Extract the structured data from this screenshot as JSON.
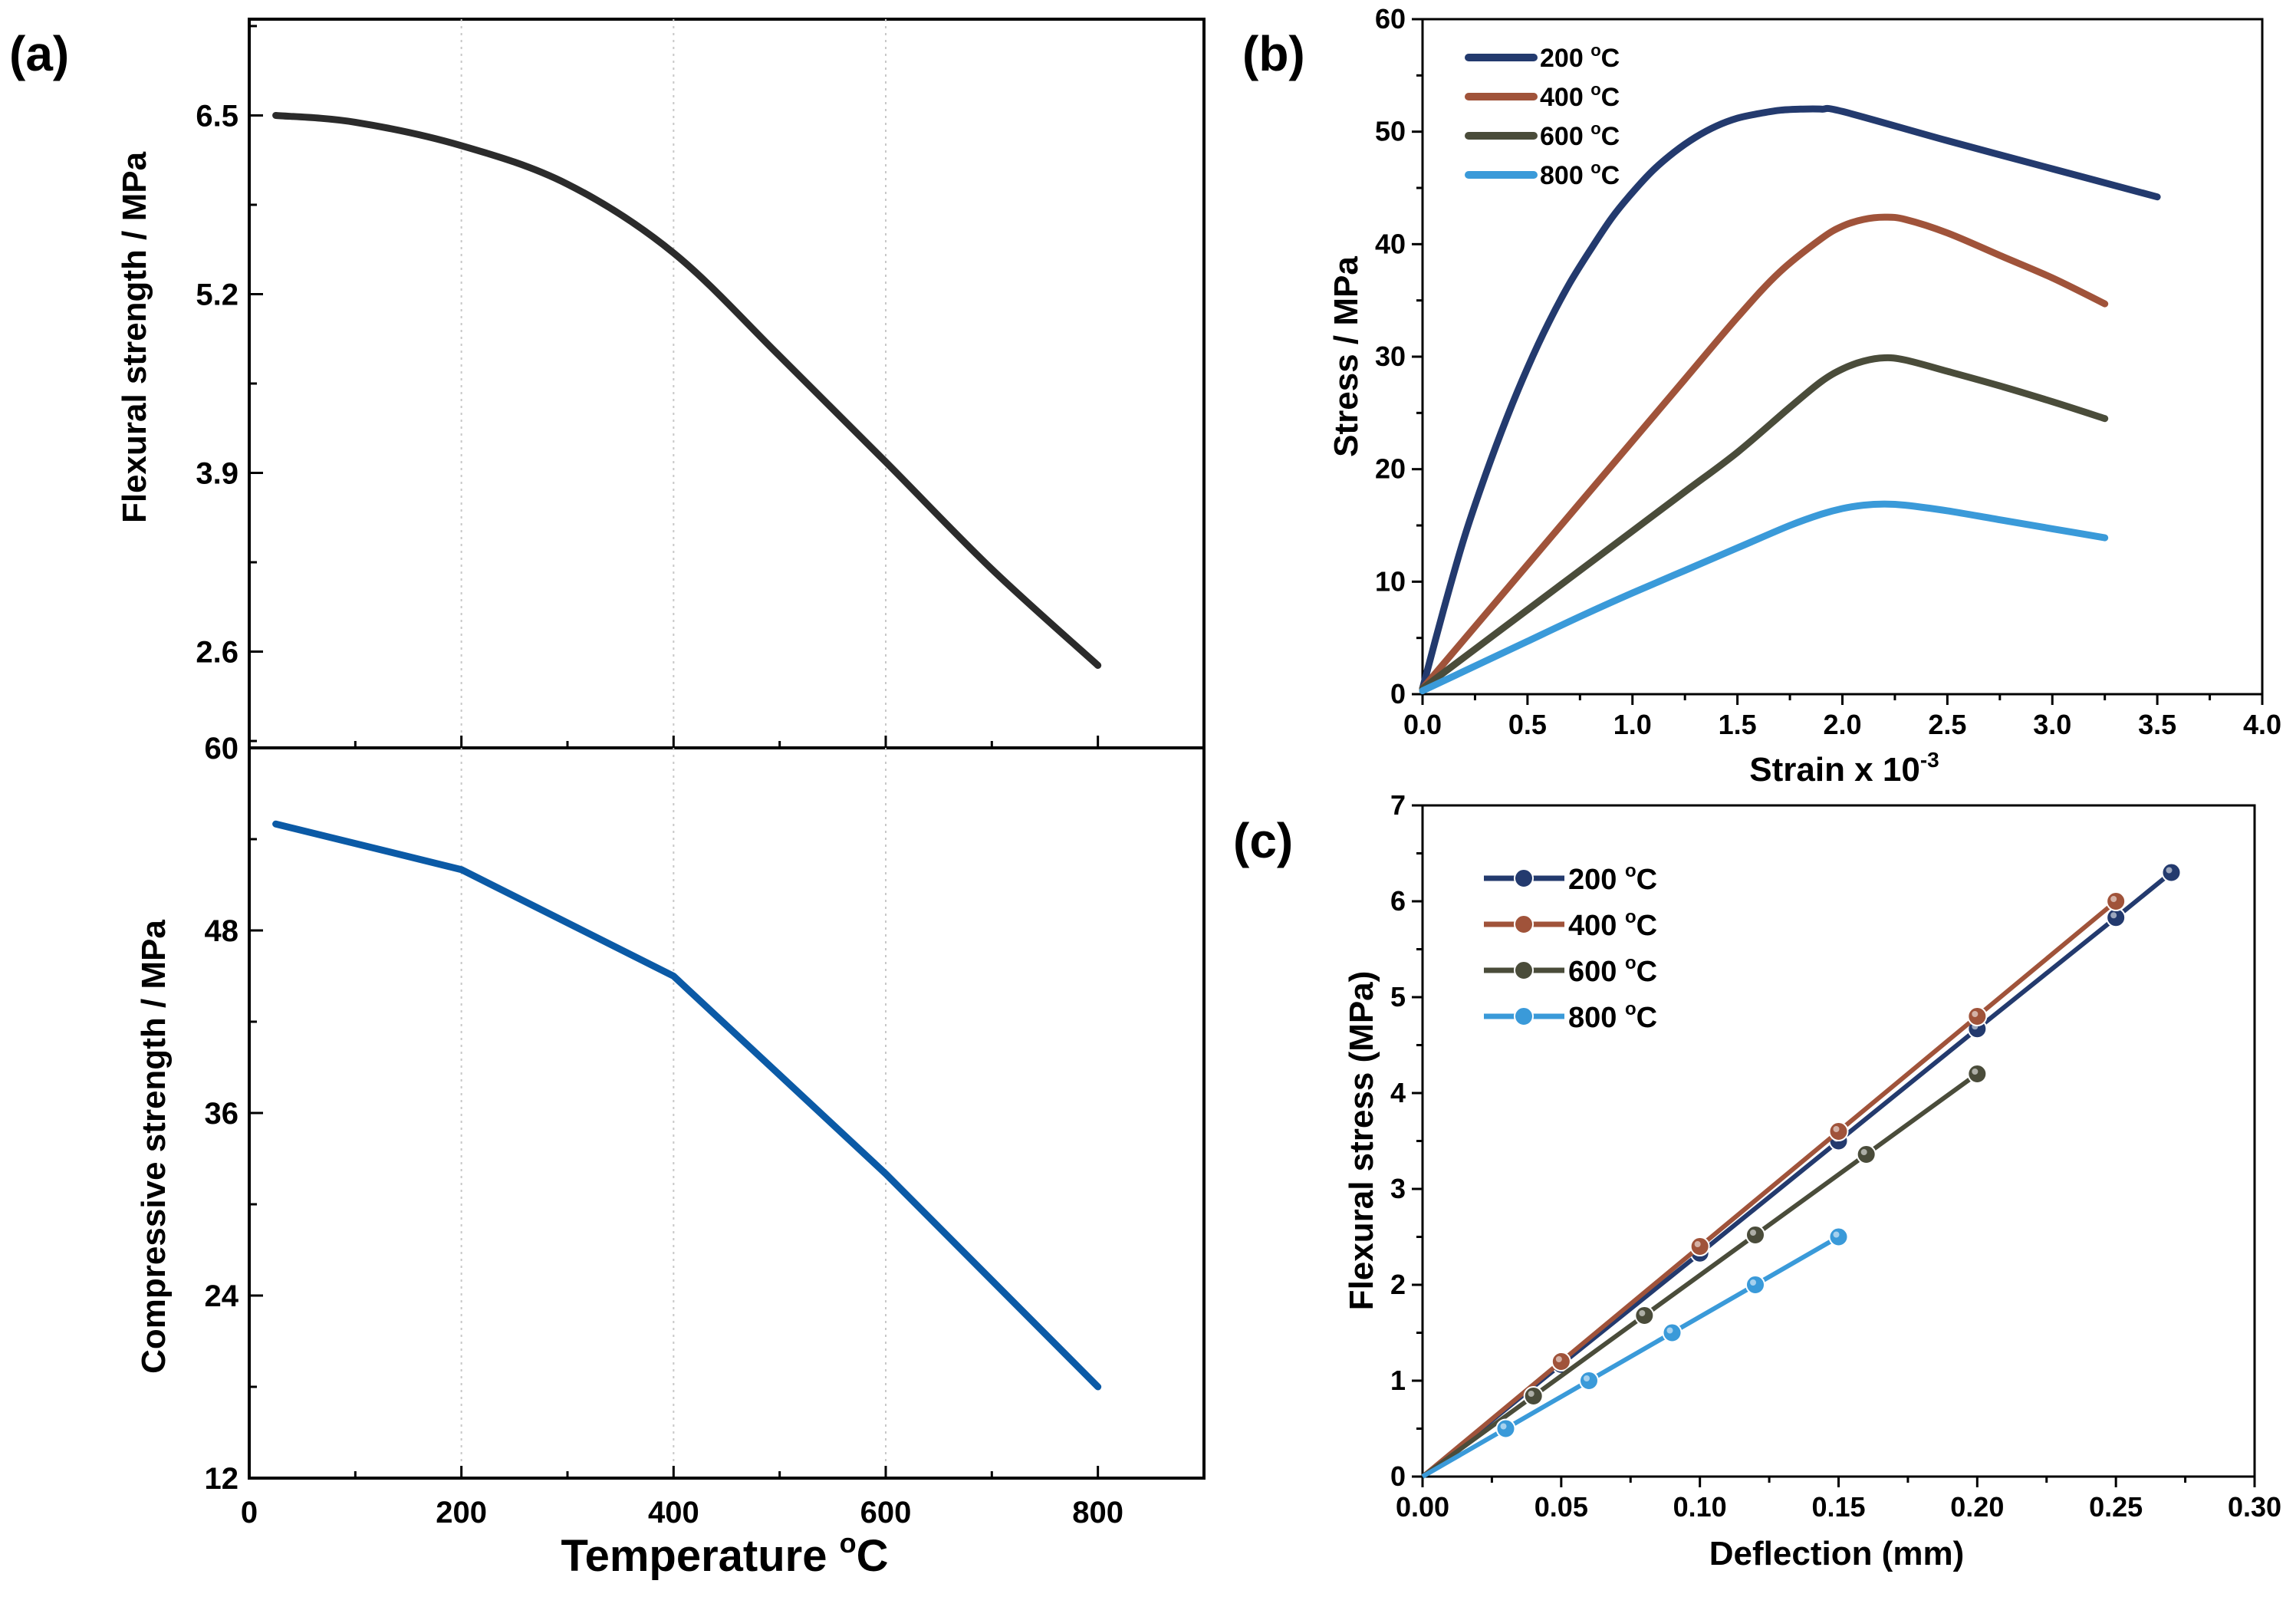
{
  "chart_data": [
    {
      "panel": "(a)",
      "type": "line",
      "subplots": [
        {
          "ylabel": "Flexural strength / MPa",
          "ylim": [
            1.9,
            7.2
          ],
          "yticks": [
            "2.6",
            "3.9",
            "5.2",
            "6.5"
          ],
          "color": "#2b2b2b",
          "x": [
            25,
            100,
            200,
            300,
            400,
            500,
            600,
            700,
            800
          ],
          "values": [
            6.5,
            6.45,
            6.28,
            6.0,
            5.5,
            4.75,
            3.98,
            3.2,
            2.5
          ]
        },
        {
          "ylabel": "Compressive strength / MPa",
          "ylim": [
            12,
            60
          ],
          "yticks": [
            "12",
            "24",
            "36",
            "48",
            "60"
          ],
          "color": "#0b5aa6",
          "x": [
            25,
            200,
            400,
            600,
            800
          ],
          "values": [
            55,
            52,
            45,
            32,
            18
          ]
        }
      ],
      "xlabel": "Temperature ",
      "xlabel_sup": "o",
      "xlabel_unit": "C",
      "xlim": [
        0,
        900
      ],
      "xticks": [
        "0",
        "200",
        "400",
        "600",
        "800"
      ],
      "grid": "vertical dotted"
    },
    {
      "panel": "(b)",
      "type": "line",
      "xlabel": "Strain x 10",
      "xlabel_sup": "-3",
      "ylabel": "Stress / MPa",
      "xlim": [
        0,
        4.0
      ],
      "ylim": [
        0,
        60
      ],
      "xticks": [
        "0.0",
        "0.5",
        "1.0",
        "1.5",
        "2.0",
        "2.5",
        "3.0",
        "3.5",
        "4.0"
      ],
      "yticks": [
        "0",
        "10",
        "20",
        "30",
        "40",
        "50",
        "60"
      ],
      "legend": "top-left",
      "series": [
        {
          "name": "200 ",
          "sup": "o",
          "unit": "C",
          "color": "#233a6e",
          "x": [
            0,
            0.1,
            0.2,
            0.3,
            0.4,
            0.5,
            0.6,
            0.7,
            0.8,
            0.9,
            1.0,
            1.1,
            1.2,
            1.3,
            1.4,
            1.5,
            1.6,
            1.7,
            1.8,
            1.9,
            2.0,
            2.5,
            3.0,
            3.5
          ],
          "values": [
            0.5,
            7.5,
            14.0,
            19.5,
            24.5,
            29.0,
            33.0,
            36.5,
            39.5,
            42.3,
            44.6,
            46.6,
            48.2,
            49.5,
            50.5,
            51.2,
            51.6,
            51.9,
            52.0,
            52.0,
            51.8,
            49.2,
            46.7,
            44.2
          ]
        },
        {
          "name": "400 ",
          "sup": "o",
          "unit": "C",
          "color": "#a0533a",
          "x": [
            0,
            0.25,
            0.5,
            0.75,
            1.0,
            1.25,
            1.5,
            1.7,
            1.9,
            2.0,
            2.1,
            2.2,
            2.3,
            2.5,
            2.75,
            3.0,
            3.25
          ],
          "values": [
            0.5,
            6.0,
            11.5,
            17.0,
            22.5,
            28.0,
            33.5,
            37.5,
            40.5,
            41.6,
            42.2,
            42.4,
            42.2,
            41.0,
            39.0,
            37.0,
            34.7
          ]
        },
        {
          "name": "600 ",
          "sup": "o",
          "unit": "C",
          "color": "#4a4c3a",
          "x": [
            0,
            0.25,
            0.5,
            0.75,
            1.0,
            1.25,
            1.5,
            1.75,
            1.9,
            2.0,
            2.1,
            2.2,
            2.3,
            2.5,
            2.75,
            3.0,
            3.25
          ],
          "values": [
            0.5,
            4.0,
            7.5,
            11.0,
            14.5,
            18.0,
            21.5,
            25.5,
            27.8,
            28.9,
            29.6,
            29.9,
            29.7,
            28.7,
            27.4,
            26.0,
            24.5
          ]
        },
        {
          "name": "800 ",
          "sup": "o",
          "unit": "C",
          "color": "#3a9ad9",
          "x": [
            0,
            0.25,
            0.5,
            0.75,
            1.0,
            1.25,
            1.5,
            1.75,
            1.9,
            2.0,
            2.1,
            2.2,
            2.3,
            2.5,
            2.75,
            3.0,
            3.25
          ],
          "values": [
            0.3,
            2.5,
            4.7,
            6.9,
            9.0,
            11.0,
            13.0,
            15.0,
            16.0,
            16.5,
            16.8,
            16.9,
            16.8,
            16.3,
            15.5,
            14.7,
            13.9
          ]
        }
      ]
    },
    {
      "panel": "(c)",
      "type": "line",
      "markers": true,
      "xlabel": "Deflection (mm)",
      "ylabel": "Flexural stress (MPa)",
      "xlim": [
        0,
        0.3
      ],
      "ylim": [
        0,
        7
      ],
      "xticks": [
        "0.00",
        "0.05",
        "0.10",
        "0.15",
        "0.20",
        "0.25",
        "0.30"
      ],
      "yticks": [
        "0",
        "1",
        "2",
        "3",
        "4",
        "5",
        "6",
        "7"
      ],
      "legend": "top-left",
      "series": [
        {
          "name": "200 ",
          "sup": "o",
          "unit": "C",
          "color": "#233a6e",
          "x": [
            0,
            0.05,
            0.1,
            0.15,
            0.2,
            0.25,
            0.27
          ],
          "values": [
            0,
            1.17,
            2.33,
            3.5,
            4.67,
            5.83,
            6.3
          ]
        },
        {
          "name": "400 ",
          "sup": "o",
          "unit": "C",
          "color": "#a0533a",
          "x": [
            0,
            0.05,
            0.1,
            0.15,
            0.2,
            0.25
          ],
          "values": [
            0,
            1.2,
            2.4,
            3.6,
            4.8,
            6.0
          ]
        },
        {
          "name": "600 ",
          "sup": "o",
          "unit": "C",
          "color": "#4a4c3a",
          "x": [
            0,
            0.04,
            0.08,
            0.12,
            0.16,
            0.2
          ],
          "values": [
            0,
            0.84,
            1.68,
            2.52,
            3.36,
            4.2
          ]
        },
        {
          "name": "800 ",
          "sup": "o",
          "unit": "C",
          "color": "#3a9ad9",
          "x": [
            0,
            0.03,
            0.06,
            0.09,
            0.12,
            0.15
          ],
          "values": [
            0,
            0.5,
            1.0,
            1.5,
            2.0,
            2.5
          ]
        }
      ]
    }
  ]
}
